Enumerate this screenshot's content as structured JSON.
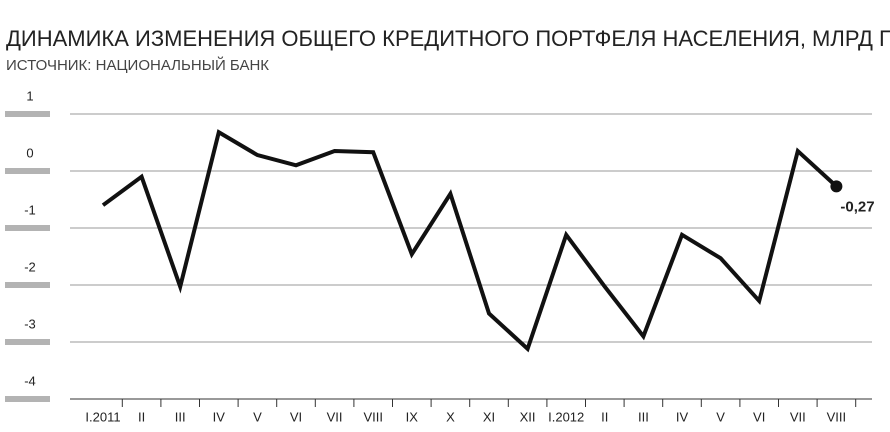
{
  "chart_data": {
    "type": "line",
    "title": "ДИНАМИКА ИЗМЕНЕНИЯ ОБЩЕГО КРЕДИТНОГО ПОРТФЕЛЯ НАСЕЛЕНИЯ, МЛРД ГРН",
    "subtitle": "ИСТОЧНИК: НАЦИОНАЛЬНЫЙ БАНК",
    "categories": [
      "I.2011",
      "II",
      "III",
      "IV",
      "V",
      "VI",
      "VII",
      "VIII",
      "IX",
      "X",
      "XI",
      "XII",
      "I.2012",
      "II",
      "III",
      "IV",
      "V",
      "VI",
      "VII",
      "VIII"
    ],
    "values": [
      -0.6,
      -0.1,
      -2.03,
      0.68,
      0.28,
      0.1,
      0.35,
      0.33,
      -1.46,
      -0.4,
      -2.5,
      -3.12,
      -1.12,
      -2.03,
      -2.9,
      -1.12,
      -1.53,
      -2.28,
      0.35,
      -0.27
    ],
    "value_labels": [
      null,
      null,
      null,
      null,
      null,
      null,
      null,
      null,
      null,
      null,
      null,
      null,
      null,
      null,
      null,
      null,
      null,
      null,
      null,
      "-0,27"
    ],
    "color": "#111111",
    "ylim": [
      -4,
      1
    ],
    "yticks": [
      1,
      0,
      -1,
      -2,
      -3,
      -4
    ],
    "grid": true
  }
}
